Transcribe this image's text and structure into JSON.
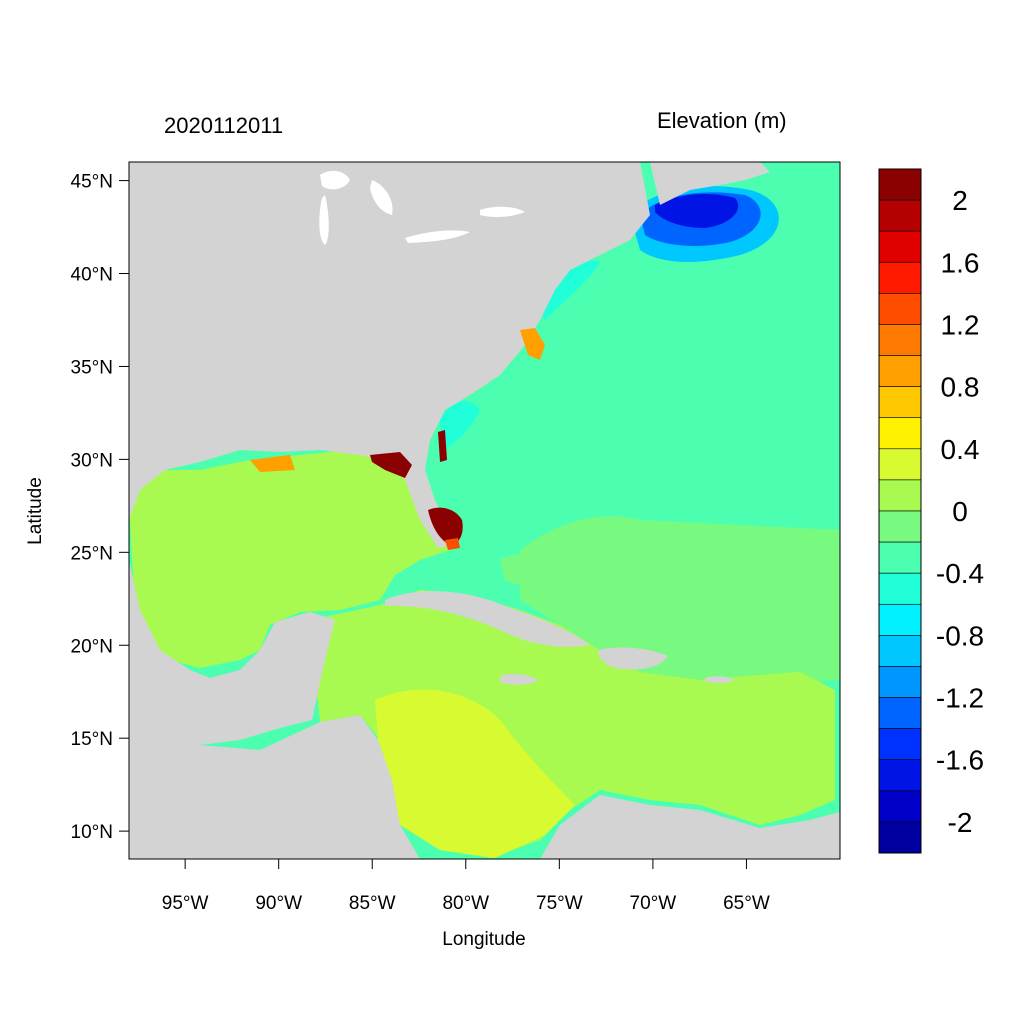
{
  "timestamp": "2020112011",
  "colorbar_title": "Elevation (m)",
  "x_axis": {
    "label": "Longitude",
    "ticks": [
      {
        "lon": -95,
        "label": "95°W"
      },
      {
        "lon": -90,
        "label": "90°W"
      },
      {
        "lon": -85,
        "label": "85°W"
      },
      {
        "lon": -80,
        "label": "80°W"
      },
      {
        "lon": -75,
        "label": "75°W"
      },
      {
        "lon": -70,
        "label": "70°W"
      },
      {
        "lon": -65,
        "label": "65°W"
      }
    ]
  },
  "y_axis": {
    "label": "Latitude",
    "ticks": [
      {
        "lat": 45,
        "label": "45°N"
      },
      {
        "lat": 40,
        "label": "40°N"
      },
      {
        "lat": 35,
        "label": "35°N"
      },
      {
        "lat": 30,
        "label": "30°N"
      },
      {
        "lat": 25,
        "label": "25°N"
      },
      {
        "lat": 20,
        "label": "20°N"
      },
      {
        "lat": 15,
        "label": "15°N"
      },
      {
        "lat": 10,
        "label": "10°N"
      }
    ]
  },
  "map_extent": {
    "lon_min": -98,
    "lon_max": -60,
    "lat_min": 8.5,
    "lat_max": 46
  },
  "colors": {
    "land": "#d3d3d3",
    "background": "#ffffff"
  },
  "colorbar": {
    "labels": [
      "2",
      "1.6",
      "1.2",
      "0.8",
      "0.4",
      "0",
      "-0.4",
      "-0.8",
      "-1.2",
      "-1.6",
      "-2"
    ],
    "colors": [
      "#8b0000",
      "#b40000",
      "#e00000",
      "#ff1a00",
      "#ff4d00",
      "#ff7a00",
      "#ff9f00",
      "#ffc800",
      "#fff200",
      "#d8fa30",
      "#a8fa50",
      "#78fa80",
      "#4cffb0",
      "#20ffd8",
      "#00f0ff",
      "#00c8ff",
      "#0096ff",
      "#0064ff",
      "#0032ff",
      "#0014e6",
      "#0000c8",
      "#0000a0"
    ]
  }
}
